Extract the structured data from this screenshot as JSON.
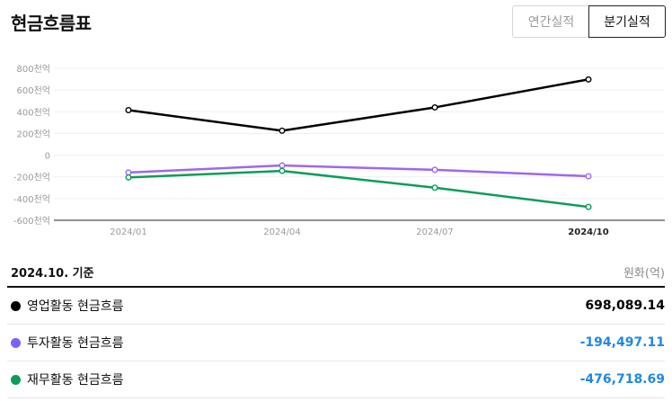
{
  "header": {
    "title": "현금흐름표",
    "tab_annual": "연간실적",
    "tab_quarterly": "분기실적"
  },
  "summary": {
    "basis": "2024.10. 기준",
    "unit": "원화(억)",
    "rows": [
      {
        "label": "영업활동 현금흐름",
        "value": "698,089.14",
        "color": "#000000",
        "value_color": "#000000"
      },
      {
        "label": "투자활동 현금흐름",
        "value": "-194,497.11",
        "color": "#7b61ff",
        "value_color": "#1e88e5"
      },
      {
        "label": "재무활동 현금흐름",
        "value": "-476,718.69",
        "color": "#0a9d58",
        "value_color": "#1e88e5"
      }
    ]
  },
  "chart_data": {
    "type": "line",
    "x": [
      "2024/01",
      "2024/04",
      "2024/07",
      "2024/10"
    ],
    "highlight_x": "2024/10",
    "ylim": [
      -600,
      800
    ],
    "y_ticks": [
      800,
      600,
      400,
      200,
      0,
      -200,
      -400,
      -600
    ],
    "y_tick_labels": [
      "800천억",
      "600천억",
      "400천억",
      "200천억",
      "0",
      "-200천억",
      "-400천억",
      "-600천억"
    ],
    "grid": true,
    "series": [
      {
        "name": "영업활동 현금흐름",
        "color": "#000000",
        "values": [
          415,
          225,
          440,
          698
        ]
      },
      {
        "name": "투자활동 현금흐름",
        "color": "#a066f0",
        "values": [
          -160,
          -95,
          -135,
          -194
        ]
      },
      {
        "name": "재무활동 현금흐름",
        "color": "#0a9d58",
        "values": [
          -205,
          -145,
          -300,
          -477
        ]
      }
    ]
  }
}
